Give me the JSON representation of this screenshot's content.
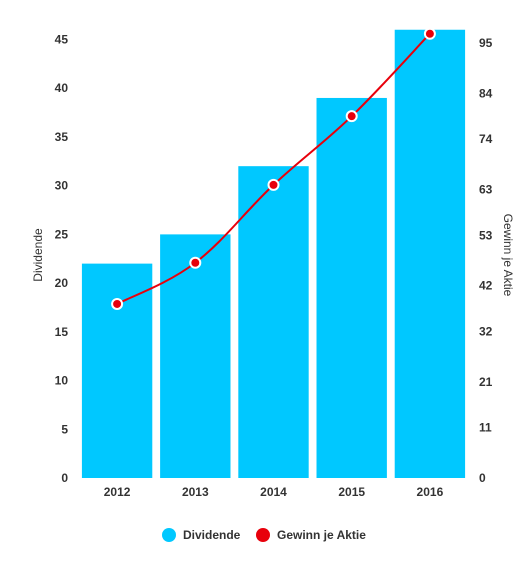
{
  "chart_data": {
    "type": "bar",
    "categories": [
      "2012",
      "2013",
      "2014",
      "2015",
      "2016"
    ],
    "series": [
      {
        "name": "Dividende",
        "type": "bar",
        "axis": "left",
        "values": [
          22,
          25,
          32,
          39,
          46
        ],
        "color": "#00c8ff"
      },
      {
        "name": "Gewinn je Aktie",
        "type": "line",
        "axis": "right",
        "values": [
          38,
          47,
          64,
          79,
          97
        ],
        "color": "#e8000b"
      }
    ],
    "y_left": {
      "label": "Dividende",
      "ylim": [
        0,
        47
      ],
      "ticks": [
        "0",
        "5",
        "10",
        "15",
        "20",
        "25",
        "30",
        "35",
        "40",
        "45"
      ]
    },
    "y_right": {
      "label": "Gewinn je Aktie",
      "ylim": [
        0,
        100
      ],
      "ticks": [
        "0",
        "11",
        "21",
        "32",
        "42",
        "53",
        "63",
        "74",
        "84",
        "95"
      ]
    },
    "legend_position": "bottom",
    "grid": false
  }
}
